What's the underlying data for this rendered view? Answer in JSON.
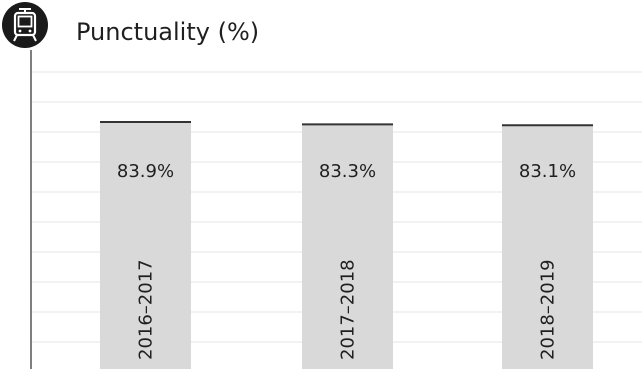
{
  "header": {
    "title": "Punctuality (%)",
    "icon": "tram-icon"
  },
  "colors": {
    "bar": "#d9d9d9",
    "bar_top": "#333333",
    "grid": "#e6e6e6",
    "axis": "#555555",
    "text": "#1f1f1f",
    "icon_bg": "#1a1a1a"
  },
  "chart_data": {
    "type": "bar",
    "categories": [
      "2016–2017",
      "2017–2018",
      "2018–2019"
    ],
    "values": [
      83.9,
      83.3,
      83.1
    ],
    "value_labels": [
      "83.9%",
      "83.3%",
      "83.1%"
    ],
    "title": "Punctuality (%)",
    "xlabel": "",
    "ylabel": "",
    "grid": true,
    "legend": "none"
  }
}
